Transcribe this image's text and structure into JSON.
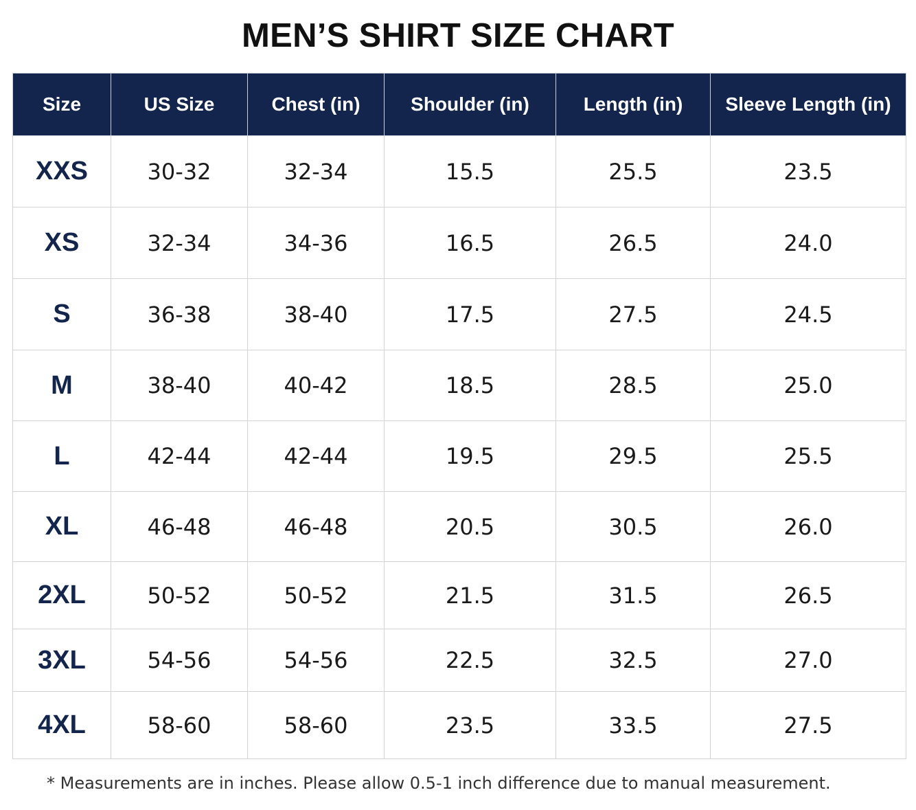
{
  "title": "MEN’S SHIRT SIZE CHART",
  "table": {
    "headers": [
      "Size",
      "US Size",
      "Chest (in)",
      "Shoulder (in)",
      "Length (in)",
      "Sleeve Length (in)"
    ],
    "rows": [
      {
        "size": "XXS",
        "us_size": "30-32",
        "chest": "32-34",
        "shoulder": "15.5",
        "length": "25.5",
        "sleeve": "23.5"
      },
      {
        "size": "XS",
        "us_size": "32-34",
        "chest": "34-36",
        "shoulder": "16.5",
        "length": "26.5",
        "sleeve": "24.0"
      },
      {
        "size": "S",
        "us_size": "36-38",
        "chest": "38-40",
        "shoulder": "17.5",
        "length": "27.5",
        "sleeve": "24.5"
      },
      {
        "size": "M",
        "us_size": "38-40",
        "chest": "40-42",
        "shoulder": "18.5",
        "length": "28.5",
        "sleeve": "25.0"
      },
      {
        "size": "L",
        "us_size": "42-44",
        "chest": "42-44",
        "shoulder": "19.5",
        "length": "29.5",
        "sleeve": "25.5"
      },
      {
        "size": "XL",
        "us_size": "46-48",
        "chest": "46-48",
        "shoulder": "20.5",
        "length": "30.5",
        "sleeve": "26.0"
      },
      {
        "size": "2XL",
        "us_size": "50-52",
        "chest": "50-52",
        "shoulder": "21.5",
        "length": "31.5",
        "sleeve": "26.5"
      },
      {
        "size": "3XL",
        "us_size": "54-56",
        "chest": "54-56",
        "shoulder": "22.5",
        "length": "32.5",
        "sleeve": "27.0"
      },
      {
        "size": "4XL",
        "us_size": "58-60",
        "chest": "58-60",
        "shoulder": "23.5",
        "length": "33.5",
        "sleeve": "27.5"
      }
    ]
  },
  "footnote": "* Measurements are in inches. Please allow 0.5-1 inch difference due to manual measurement.",
  "colors": {
    "header_bg": "#13254d",
    "header_text": "#ffffff",
    "size_text": "#13254d",
    "grid": "#d4d4d4"
  }
}
